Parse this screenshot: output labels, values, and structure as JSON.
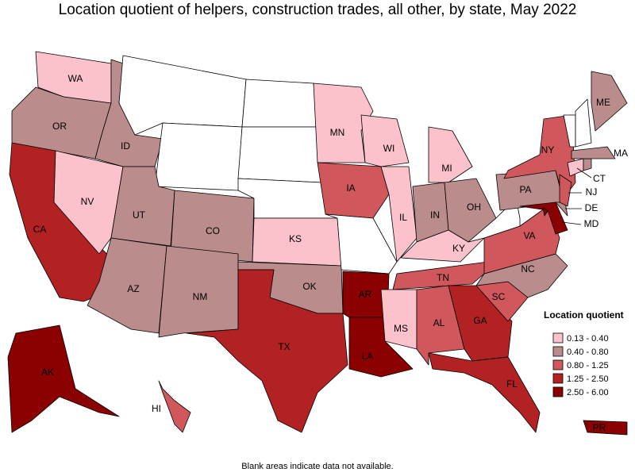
{
  "title": "Location quotient of helpers, construction trades, all other, by state, May 2022",
  "legend": {
    "title": "Location quotient",
    "bins": [
      {
        "label": "0.13 - 0.40",
        "color": "#fbc2cb"
      },
      {
        "label": "0.40 - 0.80",
        "color": "#bb8c8c"
      },
      {
        "label": "0.80 - 1.25",
        "color": "#d0585c"
      },
      {
        "label": "1.25 - 2.50",
        "color": "#b22222"
      },
      {
        "label": "2.50 - 6.00",
        "color": "#8b0000"
      }
    ]
  },
  "note": "Blank areas indicate data not available.",
  "states": [
    {
      "label": "WA",
      "color": "#fbc2cb"
    },
    {
      "label": "OR",
      "color": "#bb8c8c"
    },
    {
      "label": "CA",
      "color": "#b22222"
    },
    {
      "label": "NV",
      "color": "#fbc2cb"
    },
    {
      "label": "ID",
      "color": "#bb8c8c"
    },
    {
      "label": "UT",
      "color": "#bb8c8c"
    },
    {
      "label": "CO",
      "color": "#bb8c8c"
    },
    {
      "label": "AZ",
      "color": "#bb8c8c"
    },
    {
      "label": "NM",
      "color": "#bb8c8c"
    },
    {
      "label": "KS",
      "color": "#fbc2cb"
    },
    {
      "label": "OK",
      "color": "#bb8c8c"
    },
    {
      "label": "TX",
      "color": "#b22222"
    },
    {
      "label": "MN",
      "color": "#fbc2cb"
    },
    {
      "label": "IA",
      "color": "#d0585c"
    },
    {
      "label": "AR",
      "color": "#8b0000"
    },
    {
      "label": "LA",
      "color": "#8b0000"
    },
    {
      "label": "WI",
      "color": "#fbc2cb"
    },
    {
      "label": "IL",
      "color": "#fbc2cb"
    },
    {
      "label": "MI",
      "color": "#fbc2cb"
    },
    {
      "label": "IN",
      "color": "#bb8c8c"
    },
    {
      "label": "OH",
      "color": "#bb8c8c"
    },
    {
      "label": "KY",
      "color": "#fbc2cb"
    },
    {
      "label": "TN",
      "color": "#d0585c"
    },
    {
      "label": "MS",
      "color": "#fbc2cb"
    },
    {
      "label": "AL",
      "color": "#d0585c"
    },
    {
      "label": "GA",
      "color": "#b22222"
    },
    {
      "label": "FL",
      "color": "#b22222"
    },
    {
      "label": "SC",
      "color": "#d0585c"
    },
    {
      "label": "NC",
      "color": "#bb8c8c"
    },
    {
      "label": "VA",
      "color": "#d0585c"
    },
    {
      "label": "PA",
      "color": "#bb8c8c"
    },
    {
      "label": "NY",
      "color": "#d0585c"
    },
    {
      "label": "MD",
      "color": "#8b0000"
    },
    {
      "label": "DE",
      "color": "#bb8c8c"
    },
    {
      "label": "NJ",
      "color": "#d0585c"
    },
    {
      "label": "CT",
      "color": "#fbc2cb"
    },
    {
      "color": "#bb8c8c"
    },
    {
      "label": "MA",
      "color": "#bb8c8c"
    },
    {
      "label": "ME",
      "color": "#bb8c8c"
    },
    {
      "label": "AK",
      "color": "#8b0000"
    },
    {
      "label": "HI",
      "color": "#d0585c"
    },
    {
      "label": "PR",
      "color": "#8b0000"
    },
    {
      "color": "#8b0000"
    }
  ]
}
